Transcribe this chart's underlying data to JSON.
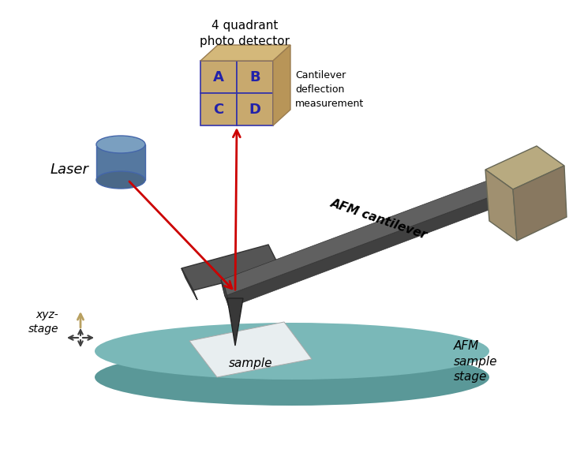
{
  "fig_width": 7.21,
  "fig_height": 5.69,
  "bg_color": "#ffffff",
  "detector_box_color_front": "#c8a96e",
  "detector_box_color_top": "#d4b87a",
  "detector_box_color_right": "#b89558",
  "detector_divider_color": "#3333aa",
  "detector_label_color": "#2222aa",
  "detector_title": "4 quadrant\nphoto detector",
  "laser_color_top": "#7a9fc0",
  "laser_color_side": "#5578a0",
  "laser_label": "Laser",
  "cantilever_color_top": "#606060",
  "cantilever_color_side": "#484848",
  "cantilever_label": "AFM cantilever",
  "holder_color_top": "#b8aa80",
  "holder_color_front": "#a09070",
  "holder_color_right": "#887860",
  "stage_color_top": "#7ab8b8",
  "stage_color_side": "#5a9898",
  "stage_label": "AFM\nsample\nstage",
  "sample_color": "#e8eef0",
  "sample_label": "sample",
  "arrow_color": "#cc0000",
  "xyz_label": "xyz-\nstage",
  "xyz_arrow_color": "#b8a060",
  "xyz_cross_color": "#404040",
  "cantilever_deflection_label": "Cantilever\ndeflection\nmeasurement",
  "text_color": "#000000"
}
